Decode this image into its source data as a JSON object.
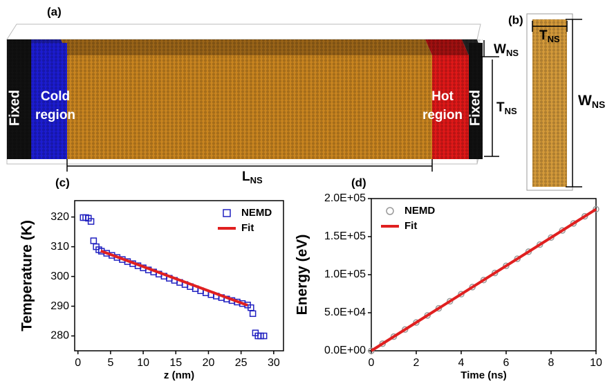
{
  "figure": {
    "panel_a": {
      "label": "(a)",
      "left_fixed": "Fixed",
      "cold": [
        "Cold",
        "region"
      ],
      "hot": [
        "Hot",
        "region"
      ],
      "right_fixed": "Fixed",
      "width": {
        "main": "W",
        "sub": "NS"
      },
      "thickness": {
        "main": "T",
        "sub": "NS"
      },
      "length": {
        "main": "L",
        "sub": "NS"
      }
    },
    "panel_b": {
      "label": "(b)",
      "thickness": {
        "main": "T",
        "sub": "NS"
      },
      "width": {
        "main": "W",
        "sub": "NS"
      }
    }
  },
  "chart_data": [
    {
      "type": "scatter",
      "panel": "(c)",
      "x_label": "z (nm)",
      "y_label": "Temperature (K)",
      "xlim": [
        -0.5,
        31.5
      ],
      "xticks": [
        0,
        5,
        10,
        15,
        20,
        25,
        30
      ],
      "ylim": [
        275,
        325.5
      ],
      "yticks": [
        280,
        290,
        300,
        310,
        320
      ],
      "legend": "upper right",
      "series": [
        {
          "name": "NEMD",
          "color": "#2020c0",
          "marker": "square",
          "x": [
            0.8,
            1.2,
            1.6,
            2.0,
            2.4,
            2.8,
            3.2,
            3.6,
            4.4,
            5.2,
            6.0,
            6.8,
            7.6,
            8.4,
            9.2,
            10.0,
            10.8,
            11.6,
            12.4,
            13.2,
            14.0,
            14.8,
            15.6,
            16.4,
            17.2,
            18.0,
            18.8,
            19.6,
            20.4,
            21.2,
            22.0,
            22.8,
            23.6,
            24.4,
            25.2,
            26.0,
            26.5,
            26.8,
            27.2,
            27.6,
            28.0,
            28.5
          ],
          "values": [
            319.8,
            319.8,
            319.6,
            318.5,
            312,
            310,
            309,
            308.5,
            307.8,
            307.1,
            306.4,
            305.7,
            305.0,
            304.3,
            303.6,
            302.9,
            302.2,
            301.5,
            300.8,
            300.1,
            299.4,
            298.7,
            298.0,
            297.3,
            296.6,
            295.9,
            295.2,
            294.5,
            293.9,
            293.4,
            292.9,
            292.4,
            291.9,
            291.4,
            290.9,
            290.4,
            289.5,
            287.5,
            281,
            280,
            280,
            280
          ]
        },
        {
          "name": "Fit",
          "color": "#e02020",
          "line": true,
          "x": [
            3.5,
            26
          ],
          "values": [
            308.6,
            290.3
          ]
        }
      ]
    },
    {
      "type": "scatter",
      "panel": "(d)",
      "x_label": "Time (ns)",
      "y_label": "Energy (eV)",
      "xlim": [
        0,
        10
      ],
      "xticks": [
        0,
        2,
        4,
        6,
        8,
        10
      ],
      "ylim": [
        0,
        200000
      ],
      "yticks": [
        {
          "value": 0,
          "label": "0.0E+00"
        },
        {
          "value": 50000,
          "label": "5.0E+04"
        },
        {
          "value": 100000,
          "label": "1.0E+05"
        },
        {
          "value": 150000,
          "label": "1.5E+05"
        },
        {
          "value": 200000,
          "label": "2.0E+05"
        }
      ],
      "legend": "upper left",
      "series": [
        {
          "name": "NEMD",
          "color": "#999999",
          "marker": "circle",
          "x": [
            0,
            0.5,
            1,
            1.5,
            2,
            2.5,
            3,
            3.5,
            4,
            4.5,
            5,
            5.5,
            6,
            6.5,
            7,
            7.5,
            8,
            8.5,
            9,
            9.5,
            10
          ],
          "values": [
            0,
            9300,
            18600,
            27900,
            37200,
            46500,
            55800,
            65100,
            74400,
            83700,
            93000,
            102300,
            111600,
            120900,
            130200,
            139500,
            148800,
            158100,
            167400,
            176700,
            186000
          ]
        },
        {
          "name": "Fit",
          "color": "#e02020",
          "line": true,
          "x": [
            0,
            10
          ],
          "values": [
            0,
            186000
          ]
        }
      ]
    }
  ]
}
